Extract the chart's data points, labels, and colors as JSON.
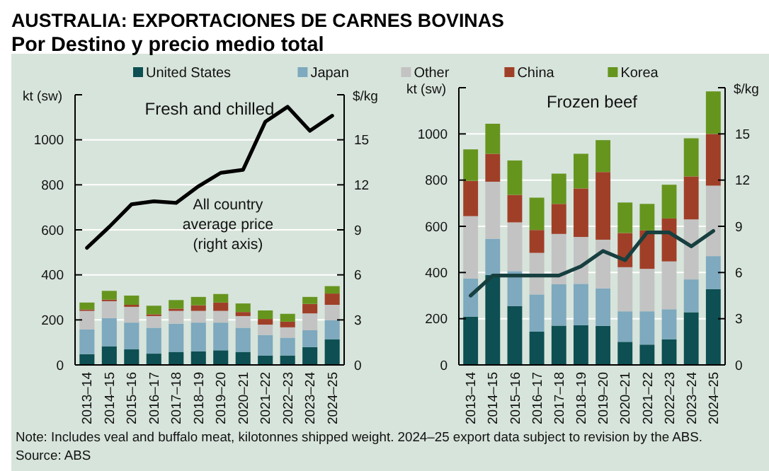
{
  "chart_data": [
    {
      "type": "bar",
      "title": "Fresh and chilled",
      "stacked": true,
      "categories": [
        "2013–14",
        "2014–15",
        "2015–16",
        "2016–17",
        "2017–18",
        "2018–19",
        "2019–20",
        "2020–21",
        "2021–22",
        "2022–23",
        "2023–24",
        "2024–25"
      ],
      "series": [
        {
          "name": "United States",
          "color": "#0d4f52",
          "values": [
            48,
            83,
            69,
            50,
            58,
            60,
            65,
            58,
            42,
            42,
            79,
            113
          ]
        },
        {
          "name": "Japan",
          "color": "#7ea9be",
          "values": [
            110,
            125,
            119,
            115,
            125,
            128,
            123,
            107,
            91,
            79,
            75,
            85
          ]
        },
        {
          "name": "Other",
          "color": "#c3c3c3",
          "values": [
            82,
            75,
            70,
            52,
            57,
            52,
            52,
            52,
            46,
            46,
            75,
            69
          ]
        },
        {
          "name": "China",
          "color": "#a03f28",
          "values": [
            6,
            7,
            9,
            8,
            10,
            25,
            37,
            18,
            25,
            25,
            42,
            50
          ]
        },
        {
          "name": "Korea",
          "color": "#66951e",
          "values": [
            31,
            39,
            41,
            38,
            38,
            37,
            38,
            38,
            38,
            35,
            31,
            33
          ]
        },
        {
          "type": "line",
          "axis": "y2",
          "color": "#000000",
          "values": [
            7.8,
            9.2,
            10.7,
            10.9,
            10.8,
            11.9,
            12.8,
            13.0,
            16.2,
            17.2,
            15.6,
            16.6
          ]
        }
      ],
      "ylabel": "kt (sw)",
      "y2label": "$/kg",
      "ylim": [
        0,
        1200
      ],
      "yticks": [
        0,
        200,
        400,
        600,
        800,
        1000,
        {
          "value": 1200,
          "label": null
        }
      ],
      "y2lim": [
        0,
        18
      ],
      "y2ticks": [
        0,
        3,
        6,
        9,
        12,
        15,
        {
          "value": 18,
          "label": null
        }
      ],
      "grid": "y",
      "legend": "top",
      "annotations": [
        "AUSTRALIA: EXPORTACIONES DE CARNES BOVINAS",
        "Por Destino y precio medio total",
        "All country average price (right axis)",
        "Note: Includes veal and buffalo meat, kilotonnes shipped weight. 2024–25 export data subject to revision by the ABS.",
        "Source: ABS"
      ]
    },
    {
      "type": "bar",
      "title": "Frozen beef",
      "stacked": true,
      "categories": [
        "2013–14",
        "2014–15",
        "2015–16",
        "2016–17",
        "2017–18",
        "2018–19",
        "2019–20",
        "2020–21",
        "2021–22",
        "2022–23",
        "2023–24",
        "2024–25"
      ],
      "series": [
        {
          "name": "United States",
          "color": "#0d4f52",
          "values": [
            209,
            389,
            255,
            144,
            170,
            172,
            169,
            100,
            88,
            111,
            228,
            328
          ]
        },
        {
          "name": "Japan",
          "color": "#7ea9be",
          "values": [
            165,
            157,
            151,
            161,
            179,
            179,
            162,
            132,
            144,
            130,
            142,
            143
          ]
        },
        {
          "name": "Other",
          "color": "#c3c3c3",
          "values": [
            270,
            247,
            211,
            180,
            218,
            203,
            211,
            191,
            184,
            207,
            260,
            305
          ]
        },
        {
          "name": "China",
          "color": "#a03f28",
          "values": [
            153,
            121,
            119,
            99,
            130,
            210,
            293,
            148,
            166,
            186,
            186,
            224
          ]
        },
        {
          "name": "Korea",
          "color": "#66951e",
          "values": [
            136,
            130,
            149,
            140,
            131,
            150,
            138,
            132,
            115,
            146,
            165,
            184
          ]
        },
        {
          "type": "line",
          "axis": "y2",
          "color": "#173f3f",
          "values": [
            4.5,
            5.8,
            5.8,
            5.8,
            5.8,
            6.4,
            7.4,
            6.8,
            8.6,
            8.6,
            7.7,
            8.7
          ]
        }
      ],
      "ylabel": "kt (sw)",
      "y2label": "$/kg",
      "ylim": [
        0,
        1200
      ],
      "yticks": [
        0,
        200,
        400,
        600,
        800,
        1000,
        {
          "value": 1200,
          "label": null
        }
      ],
      "y2lim": [
        0,
        18
      ],
      "y2ticks": [
        0,
        3,
        6,
        9,
        12,
        15,
        {
          "value": 18,
          "label": null
        }
      ],
      "grid": "y",
      "legend": "top"
    }
  ]
}
